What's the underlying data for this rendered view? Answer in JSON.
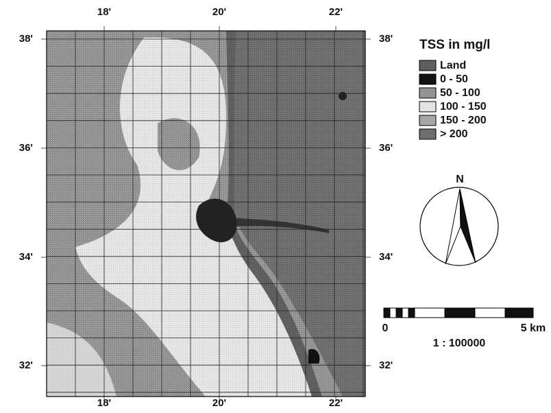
{
  "map": {
    "x_ticks": [
      "18'",
      "20'",
      "22'"
    ],
    "y_ticks": [
      "38'",
      "36'",
      "34'",
      "32'"
    ],
    "legend": {
      "title": "TSS in mg/l",
      "items": [
        "Land",
        "0 - 50",
        "50 - 100",
        "100 - 150",
        "150 - 200",
        "> 200"
      ]
    },
    "north": "N",
    "scale_bar": {
      "start": "0",
      "end": "5 km",
      "ratio": "1 : 100000"
    }
  }
}
